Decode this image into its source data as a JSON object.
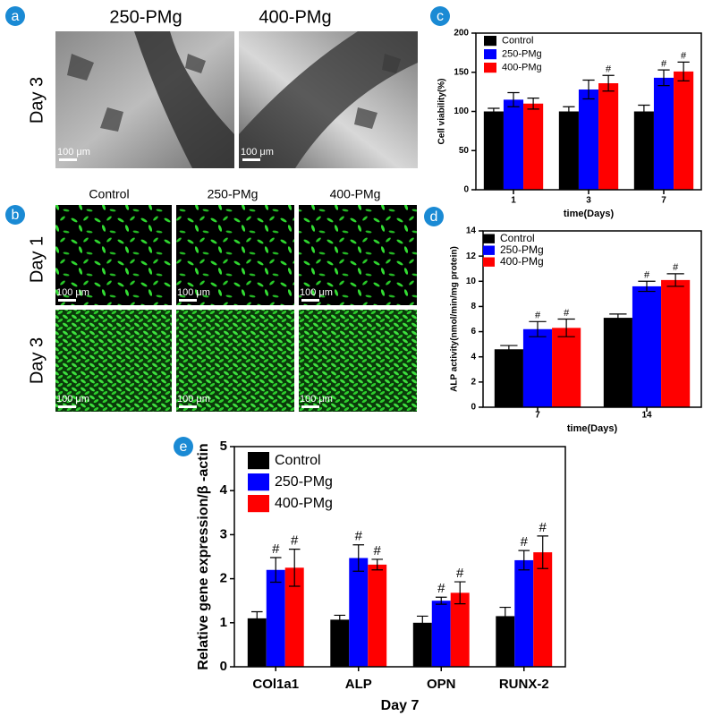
{
  "panel_a": {
    "letter": "a",
    "columns": [
      "250-PMg",
      "400-PMg"
    ],
    "row": "Day 3",
    "scale_bar": "100 μm"
  },
  "panel_b": {
    "letter": "b",
    "columns": [
      "Control",
      "250-PMg",
      "400-PMg"
    ],
    "rows": [
      "Day 1",
      "Day 3"
    ],
    "scale_bar": "100 μm"
  },
  "chart_data": [
    {
      "type": "bar",
      "letter": "c",
      "x_label": "time(Days)",
      "y_label": "Cell viability(%)",
      "categories": [
        "1",
        "3",
        "7"
      ],
      "ylim": [
        0,
        200
      ],
      "yticks": [
        0,
        50,
        100,
        150,
        200
      ],
      "legend": "upper left",
      "series": [
        {
          "name": "Control",
          "color": "#000000",
          "values": [
            100,
            100,
            100
          ],
          "errors": [
            4,
            6,
            8
          ],
          "annotations": [
            null,
            null,
            null
          ]
        },
        {
          "name": "250-PMg",
          "color": "#0000ff",
          "values": [
            115,
            128,
            143
          ],
          "errors": [
            9,
            12,
            10
          ],
          "annotations": [
            null,
            null,
            "#"
          ]
        },
        {
          "name": "400-PMg",
          "color": "#ff0000",
          "values": [
            110,
            136,
            151
          ],
          "errors": [
            7,
            10,
            12
          ],
          "annotations": [
            null,
            "#",
            "#"
          ]
        }
      ]
    },
    {
      "type": "bar",
      "letter": "d",
      "x_label": "time(Days)",
      "y_label": "ALP activity(nmol/min/mg protein)",
      "categories": [
        "7",
        "14"
      ],
      "ylim": [
        0,
        14
      ],
      "yticks": [
        0,
        2,
        4,
        6,
        8,
        10,
        12,
        14
      ],
      "legend": "upper left",
      "series": [
        {
          "name": "Control",
          "color": "#000000",
          "values": [
            4.6,
            7.1
          ],
          "errors": [
            0.3,
            0.3
          ],
          "annotations": [
            null,
            null
          ]
        },
        {
          "name": "250-PMg",
          "color": "#0000ff",
          "values": [
            6.2,
            9.6
          ],
          "errors": [
            0.6,
            0.4
          ],
          "annotations": [
            "#",
            "#"
          ]
        },
        {
          "name": "400-PMg",
          "color": "#ff0000",
          "values": [
            6.3,
            10.1
          ],
          "errors": [
            0.7,
            0.5
          ],
          "annotations": [
            "#",
            "#"
          ]
        }
      ]
    },
    {
      "type": "bar",
      "letter": "e",
      "x_label": "Day 7",
      "y_label": "Relative gene expression/β -actin",
      "categories": [
        "COl1a1",
        "ALP",
        "OPN",
        "RUNX-2"
      ],
      "ylim": [
        0,
        5
      ],
      "yticks": [
        0,
        1,
        2,
        3,
        4,
        5
      ],
      "legend": "upper left",
      "series": [
        {
          "name": "Control",
          "color": "#000000",
          "values": [
            1.1,
            1.07,
            1.0,
            1.15
          ],
          "errors": [
            0.15,
            0.1,
            0.15,
            0.2
          ],
          "annotations": [
            null,
            null,
            null,
            null
          ]
        },
        {
          "name": "250-PMg",
          "color": "#0000ff",
          "values": [
            2.2,
            2.47,
            1.5,
            2.42
          ],
          "errors": [
            0.28,
            0.3,
            0.08,
            0.22
          ],
          "annotations": [
            "#",
            "#",
            "#",
            "#"
          ]
        },
        {
          "name": "400-PMg",
          "color": "#ff0000",
          "values": [
            2.25,
            2.32,
            1.68,
            2.6
          ],
          "errors": [
            0.42,
            0.12,
            0.25,
            0.37
          ],
          "annotations": [
            "#",
            "#",
            "#",
            "#"
          ]
        }
      ]
    }
  ]
}
